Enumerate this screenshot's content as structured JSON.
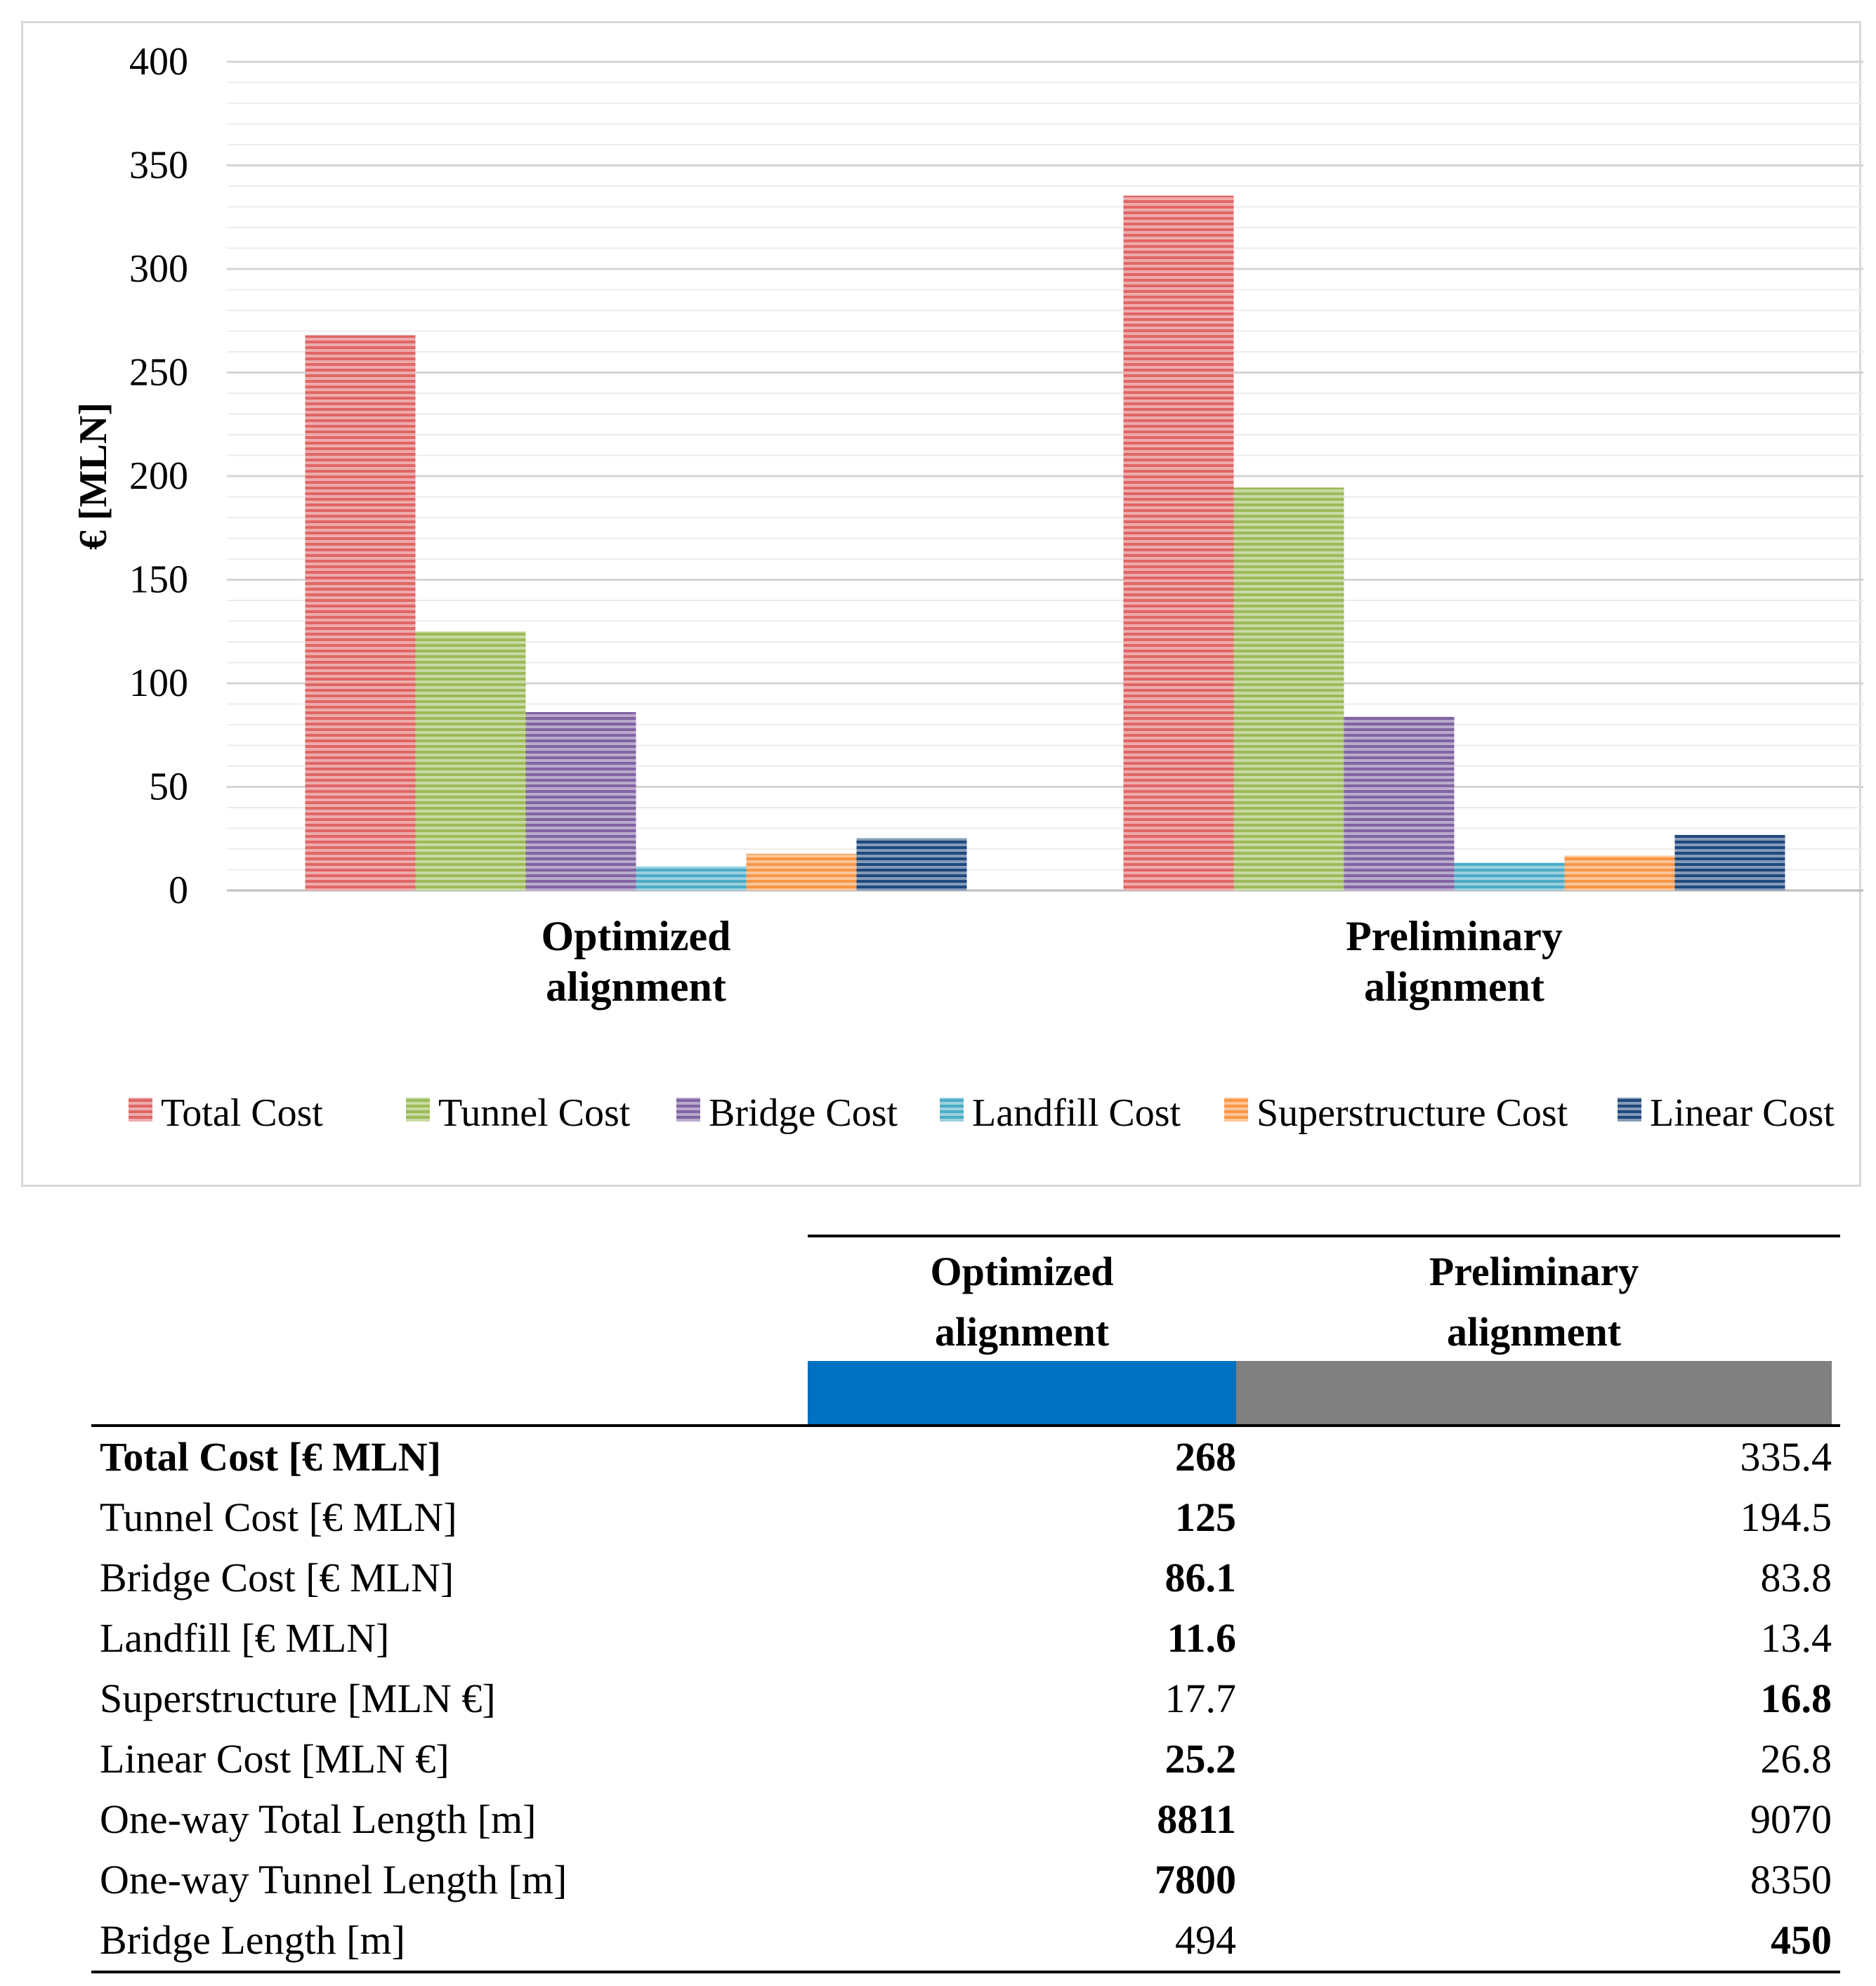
{
  "chart_data": {
    "type": "bar",
    "categories": [
      "Optimized\nalignment",
      "Preliminary\nalignment"
    ],
    "series": [
      {
        "name": "Total Cost",
        "values": [
          268,
          335.4
        ],
        "color": "#e06666"
      },
      {
        "name": "Tunnel Cost",
        "values": [
          125,
          194.5
        ],
        "color": "#9bbb59"
      },
      {
        "name": "Bridge Cost",
        "values": [
          86.1,
          83.8
        ],
        "color": "#8064a2"
      },
      {
        "name": "Landfill Cost",
        "values": [
          11.6,
          13.4
        ],
        "color": "#4bacc6"
      },
      {
        "name": "Superstructure Cost",
        "values": [
          17.7,
          16.8
        ],
        "color": "#f79646"
      },
      {
        "name": "Linear Cost",
        "values": [
          25.2,
          26.8
        ],
        "color": "#1f497d"
      }
    ],
    "title": "",
    "xlabel": "",
    "ylabel": "€ [MLN]",
    "ylim": [
      0,
      400
    ],
    "yticks": [
      0,
      50,
      100,
      150,
      200,
      250,
      300,
      350,
      400
    ],
    "grid": true,
    "legend_position": "bottom"
  },
  "table": {
    "headers": [
      {
        "label": "Optimized\nalignment",
        "color": "#0070c0"
      },
      {
        "label": "Preliminary\nalignment",
        "color": "#808080"
      }
    ],
    "rows": [
      {
        "label": "Total Cost [€ MLN]",
        "label_bold": true,
        "optimized": "268",
        "preliminary": "335.4",
        "bold": "optimized"
      },
      {
        "label": "Tunnel Cost [€ MLN]",
        "label_bold": false,
        "optimized": "125",
        "preliminary": "194.5",
        "bold": "optimized"
      },
      {
        "label": "Bridge Cost [€ MLN]",
        "label_bold": false,
        "optimized": "86.1",
        "preliminary": "83.8",
        "bold": "optimized"
      },
      {
        "label": "Landfill [€ MLN]",
        "label_bold": false,
        "optimized": "11.6",
        "preliminary": "13.4",
        "bold": "optimized"
      },
      {
        "label": "Superstructure [MLN €]",
        "label_bold": false,
        "optimized": "17.7",
        "preliminary": "16.8",
        "bold": "preliminary"
      },
      {
        "label": "Linear Cost [MLN €]",
        "label_bold": false,
        "optimized": "25.2",
        "preliminary": "26.8",
        "bold": "optimized"
      },
      {
        "label": "One-way Total Length [m]",
        "label_bold": false,
        "optimized": "8811",
        "preliminary": "9070",
        "bold": "optimized"
      },
      {
        "label": "One-way Tunnel Length [m]",
        "label_bold": false,
        "optimized": "7800",
        "preliminary": "8350",
        "bold": "optimized"
      },
      {
        "label": "Bridge Length [m]",
        "label_bold": false,
        "optimized": "494",
        "preliminary": "450",
        "bold": "preliminary"
      }
    ]
  }
}
